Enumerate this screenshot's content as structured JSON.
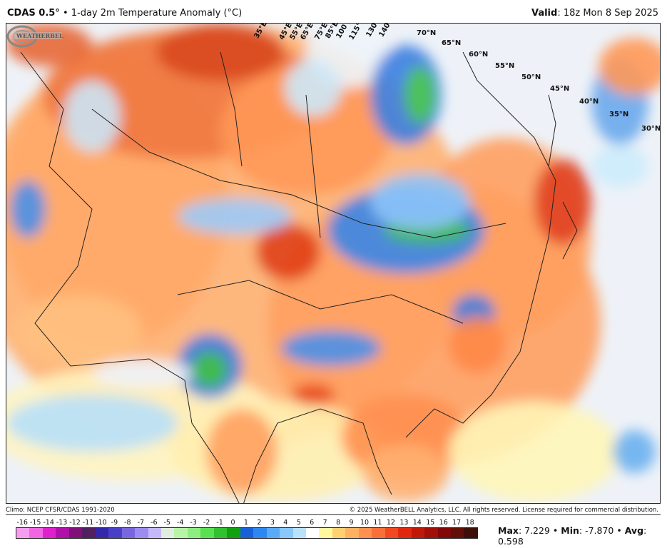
{
  "header": {
    "model": "CDAS 0.5°",
    "separator": " • ",
    "product": "1-day 2m Temperature Anomaly (°C)",
    "valid_label": "Valid",
    "valid_value": ": 18z Mon 8 Sep 2025"
  },
  "map": {
    "lon_labels": [
      "35°E",
      "45°E",
      "55°E",
      "65°E",
      "75°E",
      "85°E",
      "100°E",
      "115°E",
      "130°E",
      "140°E"
    ],
    "lat_labels": [
      "70°N",
      "65°N",
      "60°N",
      "55°N",
      "50°N",
      "45°N",
      "40°N",
      "35°N",
      "30°N"
    ],
    "logo_text": "WeatherBELL"
  },
  "footer": {
    "climo": "Climo: NCEP CFSR/CDAS 1991-2020",
    "copyright": "© 2025 WeatherBELL Analytics, LLC. All rights reserved. License required for commercial distribution."
  },
  "legend": {
    "ticks": [
      "-16",
      "-15",
      "-14",
      "-13",
      "-12",
      "-11",
      "-10",
      "-9",
      "-8",
      "-7",
      "-6",
      "-5",
      "-4",
      "-3",
      "-2",
      "-1",
      "0",
      "1",
      "2",
      "3",
      "4",
      "5",
      "6",
      "7",
      "8",
      "9",
      "10",
      "11",
      "12",
      "13",
      "14",
      "15",
      "16",
      "17",
      "18"
    ],
    "colors": [
      "#f59ef0",
      "#f065e4",
      "#e020cc",
      "#b010a8",
      "#801078",
      "#502060",
      "#3428a8",
      "#4a40c8",
      "#7866e0",
      "#9c8cf0",
      "#c4b8f8",
      "#e0ece0",
      "#b8f4a8",
      "#8cee80",
      "#58e050",
      "#30c030",
      "#10a010",
      "#1860d8",
      "#2c88f0",
      "#5aaaf8",
      "#88c8fa",
      "#b8e2fc",
      "#ffffff",
      "#fff8a0",
      "#ffd070",
      "#ffb060",
      "#ff9050",
      "#f87038",
      "#f04820",
      "#e02810",
      "#c01808",
      "#a01008",
      "#800808",
      "#601008",
      "#3c1008"
    ],
    "colors_ext": [
      "#7a5a48",
      "#9a7868",
      "#b89c8c",
      "#d8c0b4",
      "#f0e4e0",
      "#f8d0d0",
      "#f0a0a8",
      "#e07880",
      "#d85858",
      "#c83838",
      "#a82828"
    ]
  },
  "stats": {
    "max_label": "Max",
    "max_value": ": 7.229",
    "min_label": "Min",
    "min_value": ": -7.870",
    "avg_label": "Avg",
    "avg_value": ": 0.598",
    "sep": " • "
  }
}
